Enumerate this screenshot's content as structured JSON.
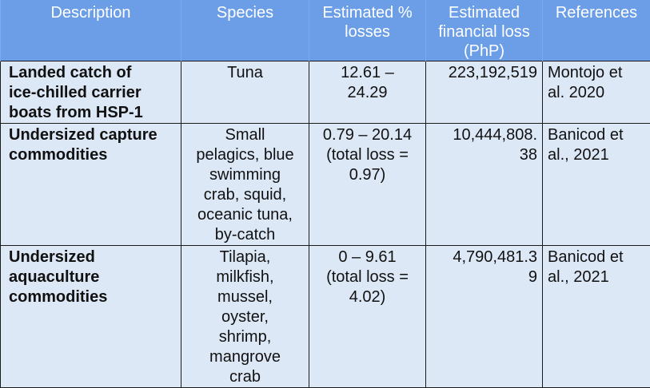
{
  "headers": {
    "description": "Description",
    "species": "Species",
    "losses": "Estimated %\nlosses",
    "financial": "Estimated\nfinancial loss\n(PhP)",
    "references": "References"
  },
  "rows": [
    {
      "description": "Landed catch of\nice-chilled carrier\nboats from HSP-1",
      "species": "Tuna",
      "losses": "12.61 –\n24.29",
      "financial": "223,192,519",
      "references": "Montojo et\nal. 2020"
    },
    {
      "description": "Undersized capture\ncommodities",
      "species": "Small\npelagics, blue\nswimming\ncrab, squid,\noceanic tuna,\nby-catch",
      "losses": "0.79 – 20.14\n(total loss =\n0.97)",
      "financial": "10,444,808.\n38",
      "references": "Banicod et\nal., 2021"
    },
    {
      "description": "Undersized\naquaculture\ncommodities",
      "species": "Tilapia,\nmilkfish,\nmussel,\noyster,\nshrimp,\nmangrove\ncrab",
      "losses": "0 – 9.61\n(total loss =\n4.02)",
      "financial": "4,790,481.3\n9",
      "references": "Banicod et\nal., 2021"
    }
  ]
}
